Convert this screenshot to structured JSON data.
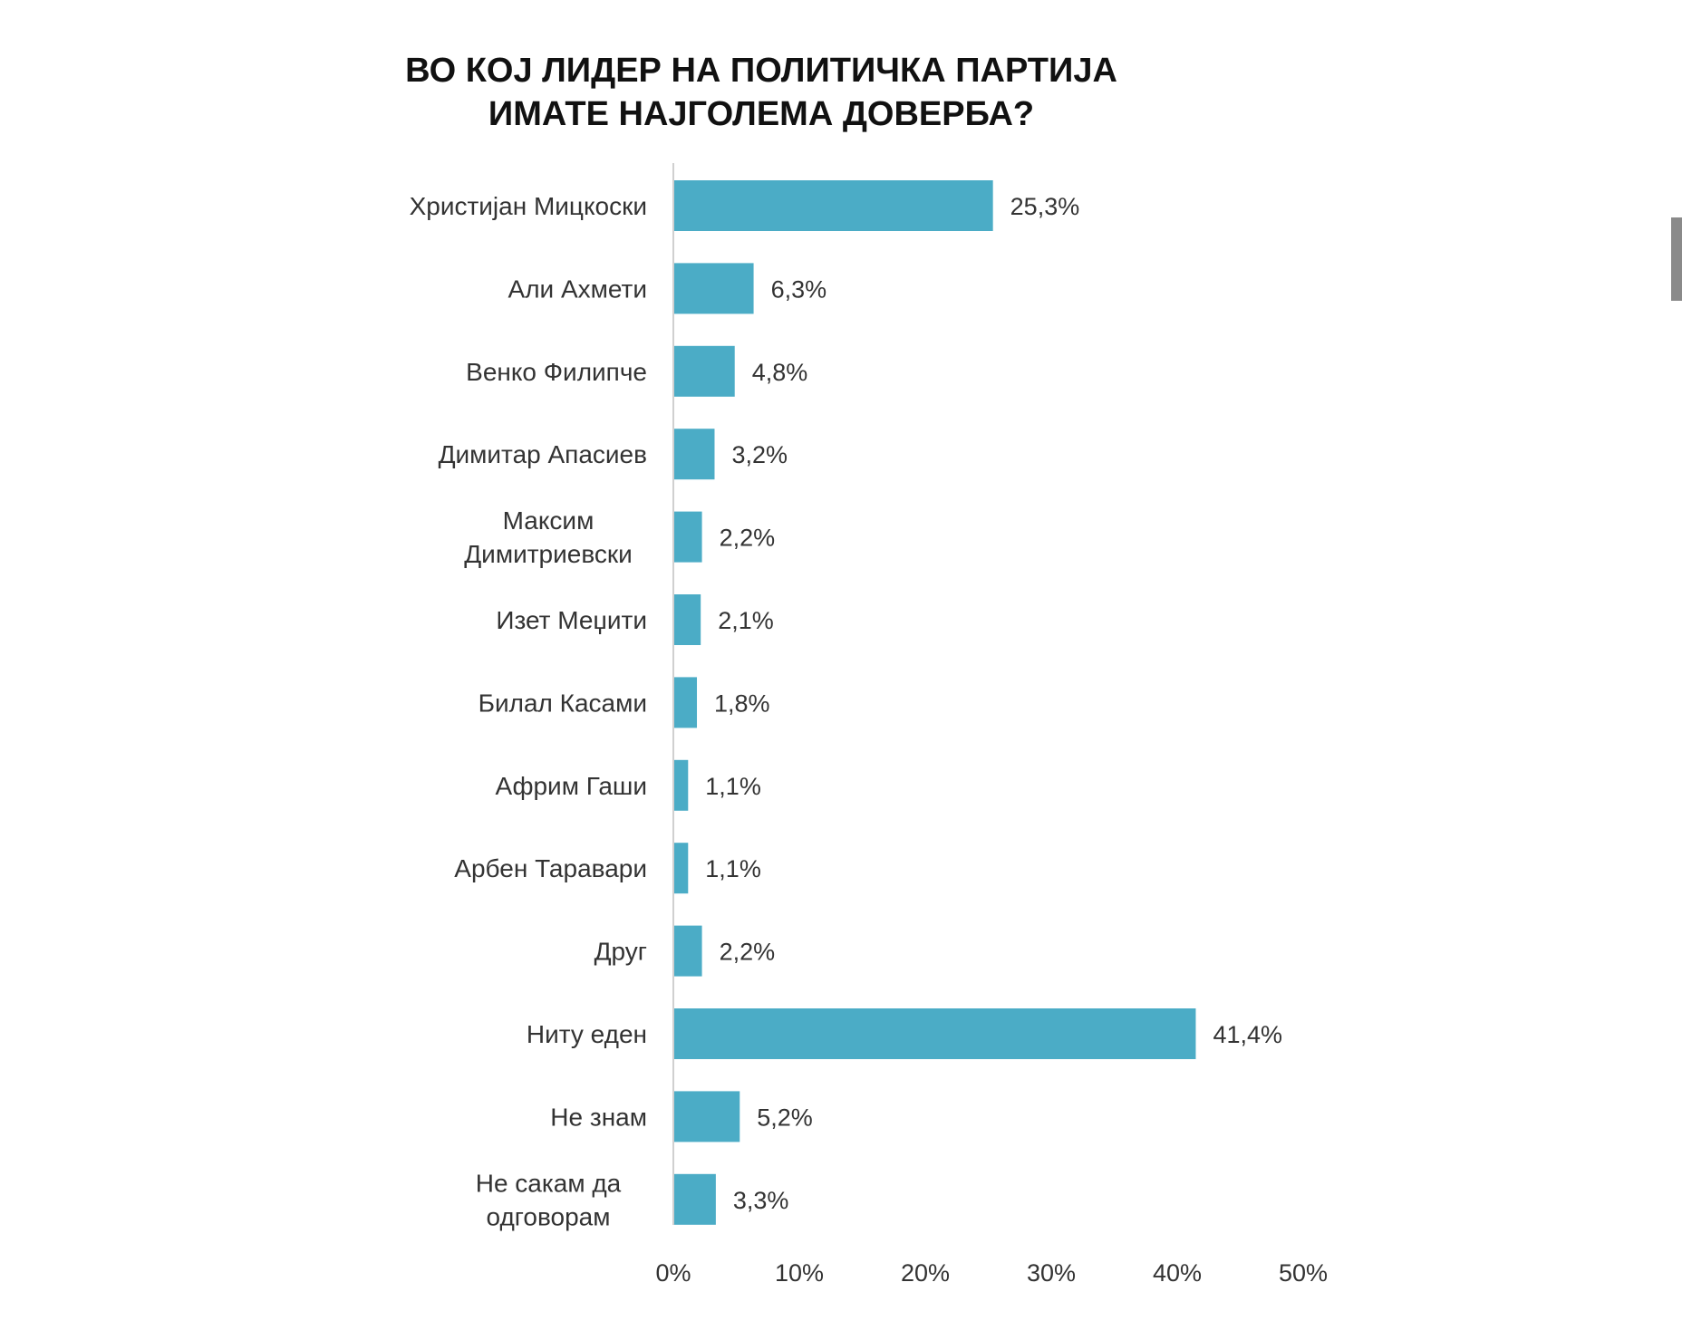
{
  "chart_data": {
    "type": "bar",
    "orientation": "horizontal",
    "title_lines": [
      "ВО КОЈ ЛИДЕР НА ПОЛИТИЧКА ПАРТИЈА",
      "ИМАТЕ НАЈГОЛЕМА ДОВЕРБА?"
    ],
    "categories": [
      [
        "Христијан Мицкоски"
      ],
      [
        "Али Ахмети"
      ],
      [
        "Венко Филипче"
      ],
      [
        "Димитар Апасиев"
      ],
      [
        "Максим",
        "Димитриевски"
      ],
      [
        "Изет Меџити"
      ],
      [
        "Билал Касами"
      ],
      [
        "Африм Гаши"
      ],
      [
        "Арбен Таравари"
      ],
      [
        "Друг"
      ],
      [
        "Ниту еден"
      ],
      [
        "Не знам"
      ],
      [
        "Не сакам да",
        "одговорам"
      ]
    ],
    "values": [
      25.3,
      6.3,
      4.8,
      3.2,
      2.2,
      2.1,
      1.8,
      1.1,
      1.1,
      2.2,
      41.4,
      5.2,
      3.3
    ],
    "value_labels": [
      "25,3%",
      "6,3%",
      "4,8%",
      "3,2%",
      "2,2%",
      "2,1%",
      "1,8%",
      "1,1%",
      "1,1%",
      "2,2%",
      "41,4%",
      "5,2%",
      "3,3%"
    ],
    "xlim": [
      0,
      50
    ],
    "xticks": [
      0,
      10,
      20,
      30,
      40,
      50
    ],
    "xtick_labels": [
      "0%",
      "10%",
      "20%",
      "30%",
      "40%",
      "50%"
    ],
    "bar_color": "#4bacc6",
    "axis_color": "#d0d0d0",
    "grid": false,
    "legend": "none"
  }
}
